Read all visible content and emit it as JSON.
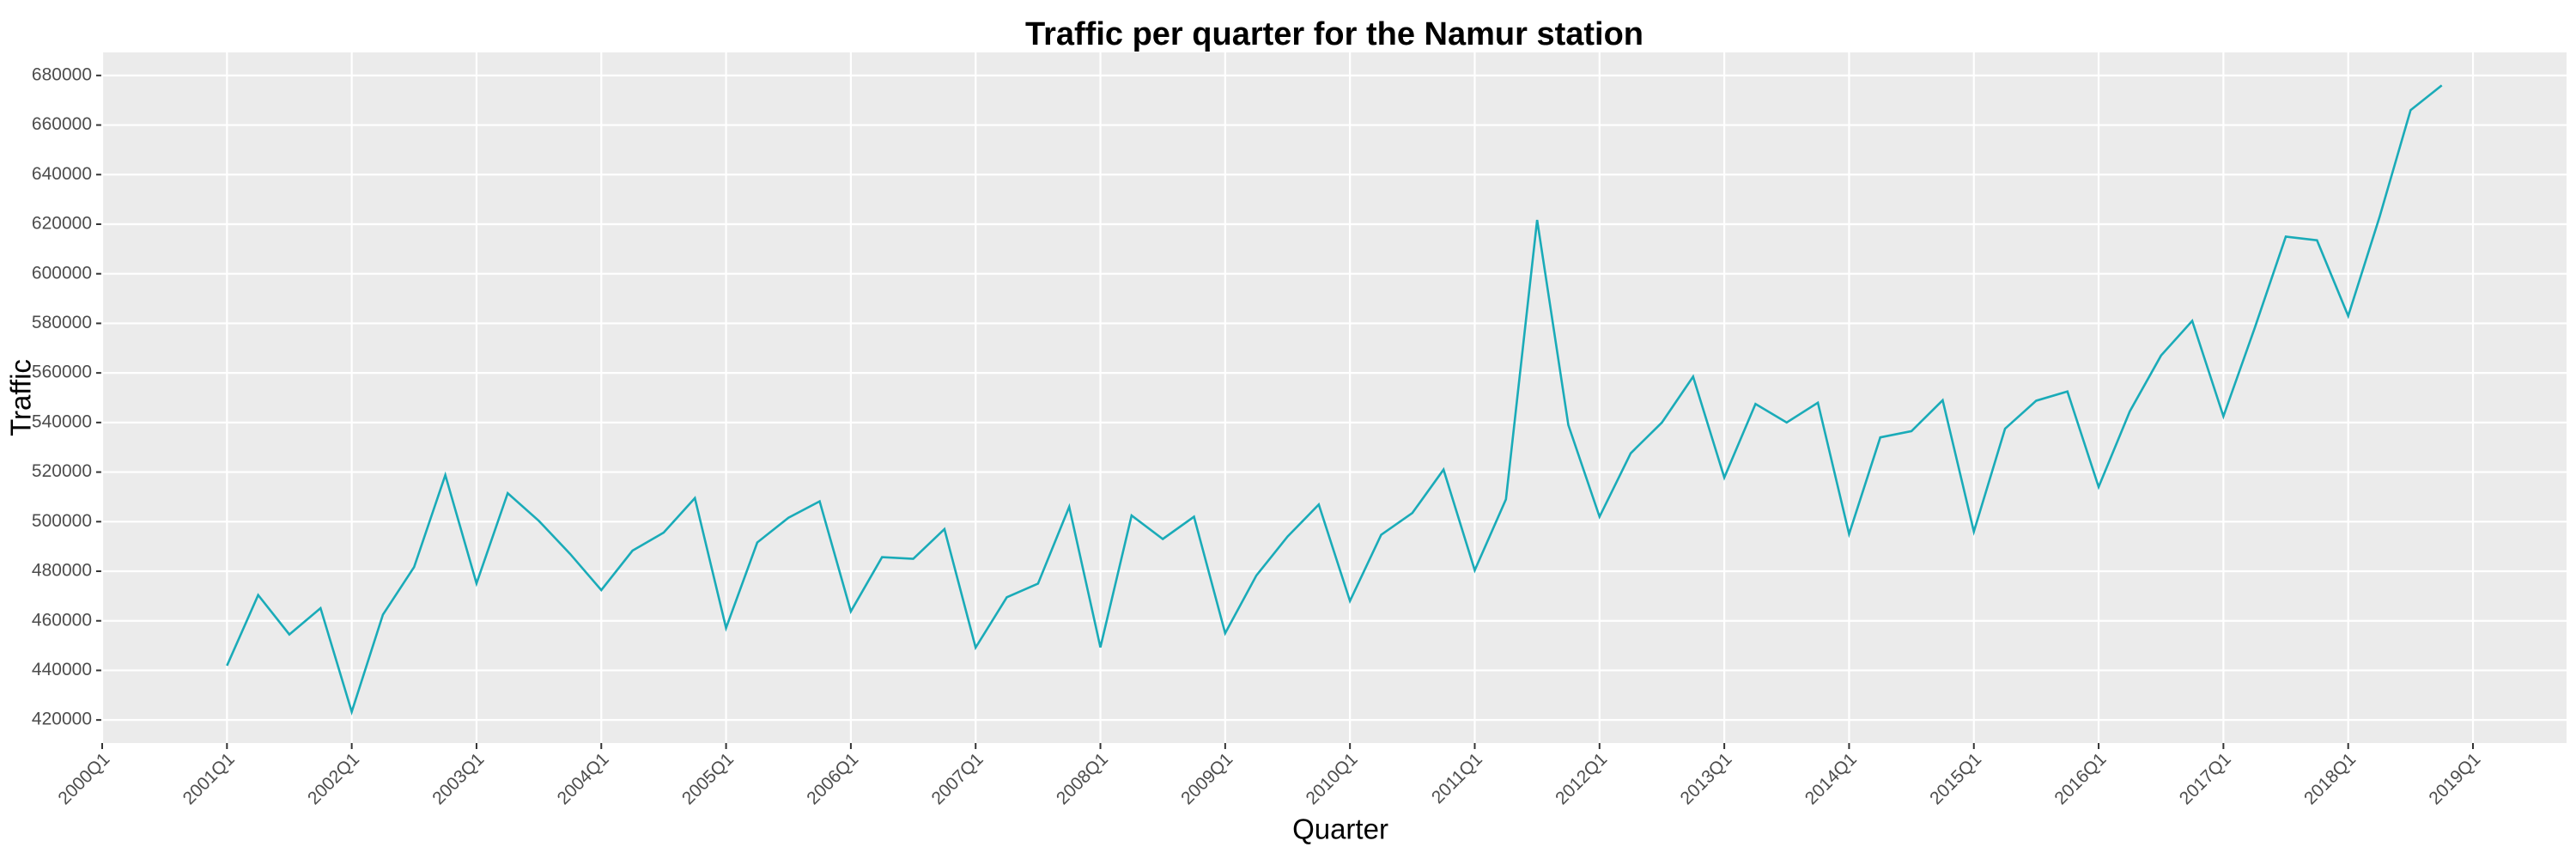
{
  "chart_data": {
    "type": "line",
    "title": "Traffic per quarter for the Namur station",
    "x_label": "Quarter",
    "y_label": "Traffic",
    "color": "#1aabb8",
    "grid": true,
    "x": [
      "2001Q1",
      "2001Q2",
      "2001Q3",
      "2001Q4",
      "2002Q1",
      "2002Q2",
      "2002Q3",
      "2002Q4",
      "2003Q1",
      "2003Q2",
      "2003Q3",
      "2003Q4",
      "2004Q1",
      "2004Q2",
      "2004Q3",
      "2004Q4",
      "2005Q1",
      "2005Q2",
      "2005Q3",
      "2005Q4",
      "2006Q1",
      "2006Q2",
      "2006Q3",
      "2006Q4",
      "2007Q1",
      "2007Q2",
      "2007Q3",
      "2007Q4",
      "2008Q1",
      "2008Q2",
      "2008Q3",
      "2008Q4",
      "2009Q1",
      "2009Q2",
      "2009Q3",
      "2009Q4",
      "2010Q1",
      "2010Q2",
      "2010Q3",
      "2010Q4",
      "2011Q1",
      "2011Q2",
      "2011Q3",
      "2011Q4",
      "2012Q1",
      "2012Q2",
      "2012Q3",
      "2012Q4",
      "2013Q1",
      "2013Q2",
      "2013Q3",
      "2013Q4",
      "2014Q1",
      "2014Q2",
      "2014Q3",
      "2014Q4",
      "2015Q1",
      "2015Q2",
      "2015Q3",
      "2015Q4",
      "2016Q1",
      "2016Q2",
      "2016Q3",
      "2016Q4",
      "2017Q1",
      "2017Q2",
      "2017Q3",
      "2017Q4",
      "2018Q1",
      "2018Q2",
      "2018Q3",
      "2018Q4"
    ],
    "values": [
      441900,
      470400,
      454500,
      465100,
      423300,
      462500,
      481700,
      518800,
      475100,
      511500,
      500300,
      487000,
      472400,
      488300,
      495600,
      509500,
      457100,
      491600,
      501600,
      508200,
      463800,
      485700,
      485000,
      497000,
      449200,
      469500,
      475000,
      506000,
      449300,
      502500,
      493000,
      502000,
      455000,
      478300,
      494000,
      506900,
      468000,
      494700,
      503500,
      521000,
      480400,
      509000,
      621700,
      539000,
      502000,
      527600,
      540000,
      558500,
      517800,
      547500,
      540000,
      548000,
      495000,
      534000,
      536500,
      549000,
      496000,
      537500,
      548800,
      552500,
      514000,
      544500,
      567000,
      581000,
      542500,
      578000,
      615000,
      613500,
      583000,
      622700,
      666000,
      676000
    ],
    "xlim": [
      "2000Q1",
      "2019Q4"
    ],
    "xticks": [
      "2000Q1",
      "2001Q1",
      "2002Q1",
      "2003Q1",
      "2004Q1",
      "2005Q1",
      "2006Q1",
      "2007Q1",
      "2008Q1",
      "2009Q1",
      "2010Q1",
      "2011Q1",
      "2012Q1",
      "2013Q1",
      "2014Q1",
      "2015Q1",
      "2016Q1",
      "2017Q1",
      "2018Q1",
      "2019Q1"
    ],
    "ylim": [
      410700,
      689300
    ],
    "yticks": [
      420000,
      440000,
      460000,
      480000,
      500000,
      520000,
      540000,
      560000,
      580000,
      600000,
      620000,
      640000,
      660000,
      680000
    ]
  }
}
